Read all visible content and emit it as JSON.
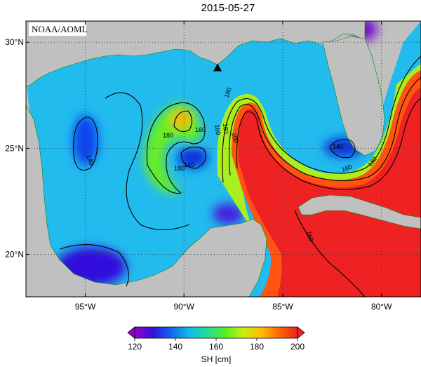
{
  "title": "2015-05-27",
  "credit": "NOAA/AOML",
  "map": {
    "lon_range": [
      -98,
      -78
    ],
    "lat_range": [
      18,
      31
    ],
    "lon_ticks": [
      {
        "value": -95,
        "label": "95°W"
      },
      {
        "value": -90,
        "label": "90°W"
      },
      {
        "value": -85,
        "label": "85°W"
      },
      {
        "value": -80,
        "label": "80°W"
      }
    ],
    "lat_ticks": [
      {
        "value": 30,
        "label": "30°N"
      },
      {
        "value": 25,
        "label": "25°N"
      },
      {
        "value": 20,
        "label": "20°N"
      }
    ],
    "grid": true,
    "marker": {
      "type": "triangle",
      "lon": -88.3,
      "lat": 28.8
    },
    "land_color": "#c0c0c0",
    "contour_labels": [
      "140",
      "160",
      "180",
      "180",
      "160",
      "140",
      "180",
      "160",
      "200",
      "160",
      "140",
      "180",
      "160"
    ]
  },
  "colorbar": {
    "label": "SH [cm]",
    "min": 120,
    "max": 200,
    "ticks": [
      {
        "value": 120,
        "label": "120"
      },
      {
        "value": 140,
        "label": "140"
      },
      {
        "value": 160,
        "label": "160"
      },
      {
        "value": 180,
        "label": "180"
      },
      {
        "value": 200,
        "label": "200"
      }
    ],
    "colors": [
      "#9900cc",
      "#3311dd",
      "#1166ee",
      "#11bbee",
      "#22dd99",
      "#55ee22",
      "#ccee11",
      "#ffbb00",
      "#ff6600",
      "#ee2222"
    ]
  }
}
